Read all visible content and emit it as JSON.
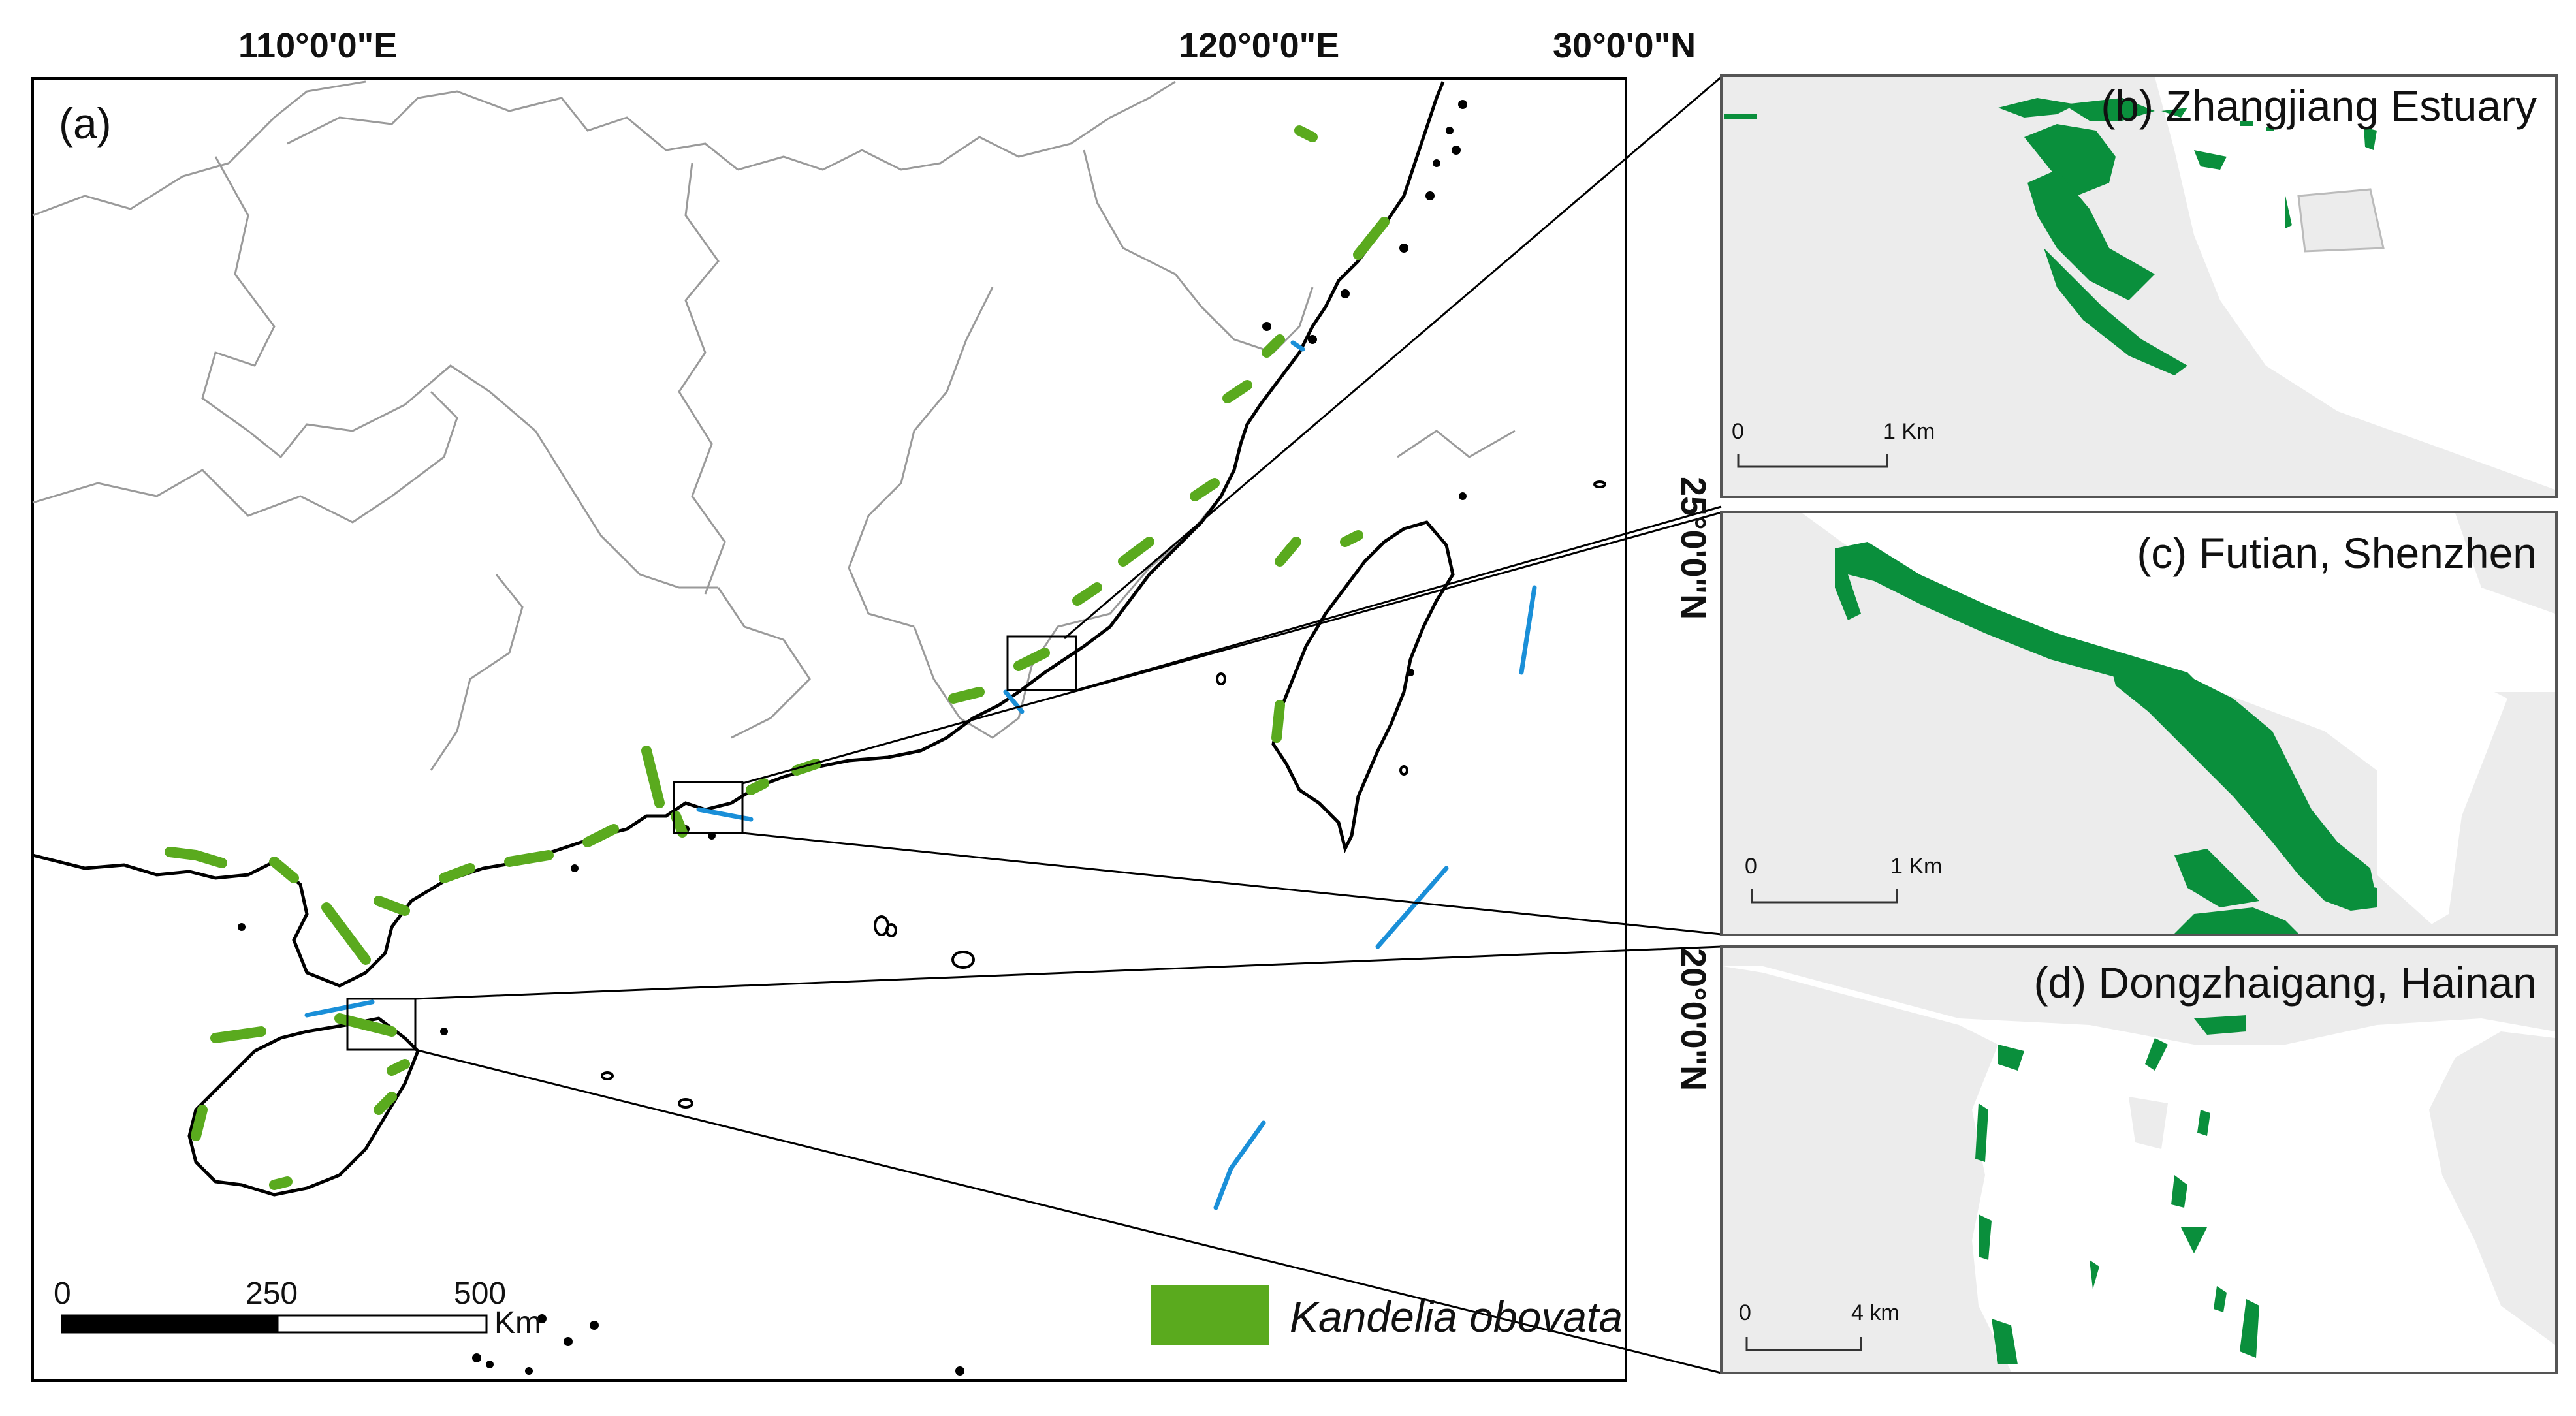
{
  "main_map": {
    "panel_label": "(a)",
    "lon_labels": [
      "110°0'0\"E",
      "120°0'0\"E"
    ],
    "lat_labels": [
      "30°0'0\"N",
      "25°0'0\"N",
      "20°0'0\"N"
    ],
    "scale_ticks": [
      "0",
      "250",
      "500"
    ],
    "scale_unit": "Km",
    "legend_label": "Kandelia obovata",
    "colors": {
      "land_outline": "#999999",
      "coast": "#000000",
      "mangrove": "#5aaa1e",
      "ocean_feature": "#1a8fd8"
    }
  },
  "insets": [
    {
      "title": "(b) Zhangjiang Estuary",
      "scale_start": "0",
      "scale_end": "1 Km"
    },
    {
      "title": "(c) Futian, Shenzhen",
      "scale_start": "0",
      "scale_end": "1 Km"
    },
    {
      "title": "(d) Dongzhaigang, Hainan",
      "scale_start": "0",
      "scale_end": "4 km"
    }
  ],
  "inset_colors": {
    "land": "#ececec",
    "mangrove": "#0a8f3c"
  }
}
